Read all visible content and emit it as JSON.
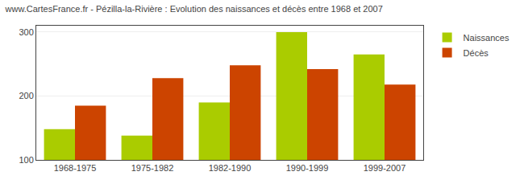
{
  "chart_data": {
    "type": "bar",
    "title": "www.CartesFrance.fr - Pézilla-la-Rivière : Evolution des naissances et décès entre 1968 et 2007",
    "categories": [
      "1968-1975",
      "1975-1982",
      "1982-1990",
      "1990-1999",
      "1999-2007"
    ],
    "series": [
      {
        "name": "Naissances",
        "color": "#aacc00",
        "values": [
          148,
          138,
          190,
          300,
          265
        ]
      },
      {
        "name": "Décès",
        "color": "#cc4400",
        "values": [
          185,
          228,
          248,
          242,
          218
        ]
      }
    ],
    "ylim": [
      100,
      310
    ],
    "yticks": [
      100,
      200,
      300
    ],
    "grid": true,
    "legend": "upper right"
  }
}
